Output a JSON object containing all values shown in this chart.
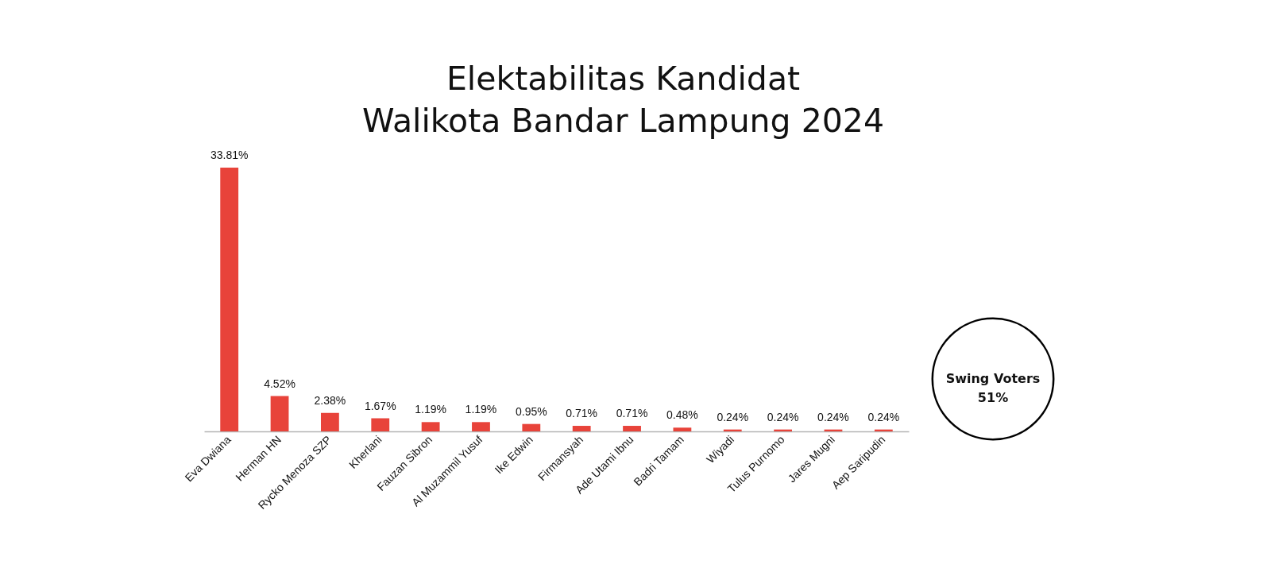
{
  "chart_data": {
    "type": "bar",
    "title": "Elektabilitas Kandidat\nWalikota Bandar Lampung 2024",
    "categories": [
      "Eva Dwiana",
      "Herman HN",
      "Rycko Menoza SZP",
      "Kherlani",
      "Fauzan Sibron",
      "Al Muzammil Yusuf",
      "Ike Edwin",
      "Firmansyah",
      "Ade Utami Ibnu",
      "Badri Tamam",
      "Wiyadi",
      "Tulus Purnomo",
      "Jares Mugni",
      "Aep Saripudin"
    ],
    "values": [
      33.81,
      4.52,
      2.38,
      1.67,
      1.19,
      1.19,
      0.95,
      0.71,
      0.71,
      0.48,
      0.24,
      0.24,
      0.24,
      0.24
    ],
    "value_labels": [
      "33.81%",
      "4.52%",
      "2.38%",
      "1.67%",
      "1.19%",
      "1.19%",
      "0.95%",
      "0.71%",
      "0.71%",
      "0.48%",
      "0.24%",
      "0.24%",
      "0.24%",
      "0.24%"
    ],
    "color": "#e8433a",
    "annotations": [
      "Swing Voters\n51%"
    ]
  }
}
